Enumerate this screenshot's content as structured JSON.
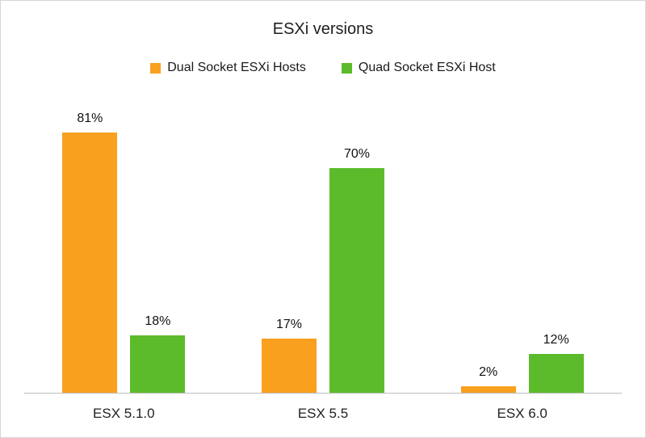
{
  "chart_data": {
    "type": "bar",
    "title": "ESXi versions",
    "categories": [
      "ESX 5.1.0",
      "ESX 5.5",
      "ESX 6.0"
    ],
    "series": [
      {
        "name": "Dual Socket ESXi Hosts",
        "color": "#F9A01F",
        "values": [
          81,
          17,
          2
        ],
        "labels": [
          "81%",
          "17%",
          "2%"
        ]
      },
      {
        "name": "Quad Socket ESXi Host",
        "color": "#5CBB2A",
        "values": [
          18,
          70,
          12
        ],
        "labels": [
          "18%",
          "70%",
          "12%"
        ]
      }
    ],
    "value_unit": "%",
    "xlabel": "",
    "ylabel": "",
    "ylim": [
      0,
      86
    ],
    "grid": false,
    "data_labels": true,
    "legend_position": "top",
    "axis_line_color": "#bdbdbd"
  }
}
